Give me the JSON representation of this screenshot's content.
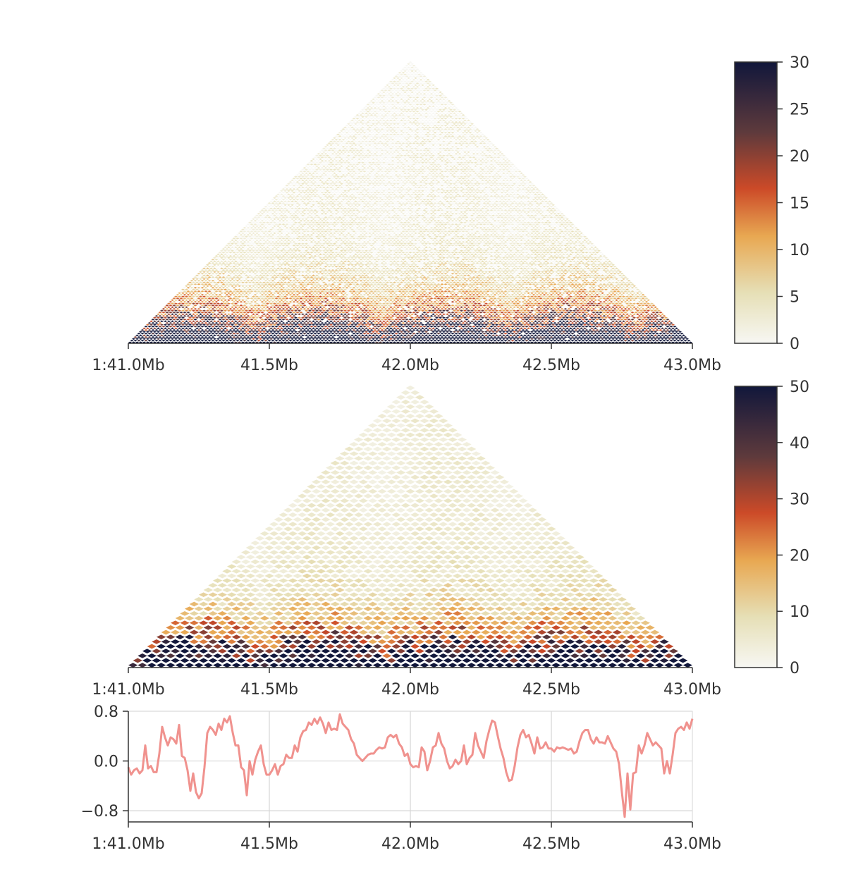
{
  "chart_data": [
    {
      "type": "heatmap",
      "title": "",
      "xlabel": "",
      "ylabel": "",
      "x_ticks": [
        "1:41.0Mb",
        "41.5Mb",
        "42.0Mb",
        "42.5Mb",
        "43.0Mb"
      ],
      "x_tick_values_mb": [
        41.0,
        41.5,
        42.0,
        42.5,
        43.0
      ],
      "region": {
        "chrom": "1",
        "start_mb": 41.0,
        "end_mb": 43.0
      },
      "resolution_bins": 200,
      "colorbar": {
        "min": 0,
        "max": 30,
        "ticks": [
          "0",
          "5",
          "10",
          "15",
          "20",
          "25",
          "30"
        ],
        "tick_values": [
          0,
          5,
          10,
          15,
          20,
          25,
          30
        ]
      },
      "colormap": [
        "#f7f7f3",
        "#e6dfb6",
        "#e8a852",
        "#cc4a28",
        "#5e3a3c",
        "#11173b"
      ],
      "grid": false
    },
    {
      "type": "heatmap",
      "title": "",
      "xlabel": "",
      "ylabel": "",
      "x_ticks": [
        "1:41.0Mb",
        "41.5Mb",
        "42.0Mb",
        "42.5Mb",
        "43.0Mb"
      ],
      "x_tick_values_mb": [
        41.0,
        41.5,
        42.0,
        42.5,
        43.0
      ],
      "region": {
        "chrom": "1",
        "start_mb": 41.0,
        "end_mb": 43.0
      },
      "resolution_bins": 50,
      "colorbar": {
        "min": 0,
        "max": 50,
        "ticks": [
          "0",
          "10",
          "20",
          "30",
          "40",
          "50"
        ],
        "tick_values": [
          0,
          10,
          20,
          30,
          40,
          50
        ]
      },
      "colormap": [
        "#f7f7f3",
        "#e6dfb6",
        "#e8a852",
        "#cc4a28",
        "#5e3a3c",
        "#11173b"
      ],
      "grid": false
    },
    {
      "type": "line",
      "title": "",
      "xlabel": "",
      "ylabel": "",
      "x_ticks": [
        "1:41.0Mb",
        "41.5Mb",
        "42.0Mb",
        "42.5Mb",
        "43.0Mb"
      ],
      "x_tick_values_mb": [
        41.0,
        41.5,
        42.0,
        42.5,
        43.0
      ],
      "y_ticks": [
        "0.8",
        "0.0",
        "−0.8"
      ],
      "y_tick_values": [
        0.8,
        0.0,
        -0.8
      ],
      "ylim": [
        -0.98,
        0.8
      ],
      "xlim": [
        41.0,
        43.0
      ],
      "grid": true,
      "color": "#f0928e",
      "series": [
        {
          "x": [
            41.0,
            41.01,
            41.02,
            41.03,
            41.04,
            41.05,
            41.06,
            41.07,
            41.08,
            41.09,
            41.1,
            41.11,
            41.12,
            41.13,
            41.14,
            41.15,
            41.16,
            41.17,
            41.18,
            41.19,
            41.2,
            41.21,
            41.22,
            41.23,
            41.24,
            41.25,
            41.26,
            41.27,
            41.28,
            41.29,
            41.3,
            41.31,
            41.32,
            41.33,
            41.34,
            41.35,
            41.36,
            41.37,
            41.38,
            41.39,
            41.4,
            41.41,
            41.42,
            41.43,
            41.44,
            41.45,
            41.46,
            41.47,
            41.48,
            41.49,
            41.5,
            41.51,
            41.52,
            41.53,
            41.54,
            41.55,
            41.56,
            41.57,
            41.58,
            41.59,
            41.6,
            41.61,
            41.62,
            41.63,
            41.64,
            41.65,
            41.66,
            41.67,
            41.68,
            41.69,
            41.7,
            41.71,
            41.72,
            41.73,
            41.74,
            41.75,
            41.76,
            41.77,
            41.78,
            41.79,
            41.8,
            41.81,
            41.82,
            41.83,
            41.84,
            41.85,
            41.86,
            41.87,
            41.88,
            41.89,
            41.9,
            41.91,
            41.92,
            41.93,
            41.94,
            41.95,
            41.96,
            41.97,
            41.98,
            41.99,
            42.0,
            42.01,
            42.02,
            42.03,
            42.04,
            42.05,
            42.06,
            42.07,
            42.08,
            42.09,
            42.1,
            42.11,
            42.12,
            42.13,
            42.14,
            42.15,
            42.16,
            42.17,
            42.18,
            42.19,
            42.2,
            42.21,
            42.22,
            42.23,
            42.24,
            42.25,
            42.26,
            42.27,
            42.28,
            42.29,
            42.3,
            42.31,
            42.32,
            42.33,
            42.34,
            42.35,
            42.36,
            42.37,
            42.38,
            42.39,
            42.4,
            42.41,
            42.42,
            42.43,
            42.44,
            42.45,
            42.46,
            42.47,
            42.48,
            42.49,
            42.5,
            42.51,
            42.52,
            42.53,
            42.54,
            42.55,
            42.56,
            42.57,
            42.58,
            42.59,
            42.6,
            42.61,
            42.62,
            42.63,
            42.64,
            42.65,
            42.66,
            42.67,
            42.68,
            42.69,
            42.7,
            42.71,
            42.72,
            42.73,
            42.74,
            42.75,
            42.76,
            42.77,
            42.78,
            42.79,
            42.8,
            42.81,
            42.82,
            42.83,
            42.84,
            42.85,
            42.86,
            42.87,
            42.88,
            42.89,
            42.9,
            42.91,
            42.92,
            42.93,
            42.94,
            42.95,
            42.96,
            42.97,
            42.98,
            42.99,
            43.0
          ],
          "values": [
            -0.1,
            -0.22,
            -0.15,
            -0.12,
            -0.2,
            -0.15,
            0.25,
            -0.12,
            -0.08,
            -0.18,
            -0.18,
            0.12,
            0.55,
            0.38,
            0.25,
            0.38,
            0.35,
            0.28,
            0.58,
            0.08,
            0.05,
            -0.15,
            -0.48,
            -0.2,
            -0.5,
            -0.6,
            -0.52,
            -0.1,
            0.45,
            0.55,
            0.5,
            0.42,
            0.6,
            0.5,
            0.68,
            0.62,
            0.72,
            0.46,
            0.25,
            0.25,
            -0.1,
            -0.15,
            -0.55,
            0.0,
            -0.22,
            0.02,
            0.15,
            0.25,
            -0.05,
            -0.22,
            -0.22,
            -0.15,
            -0.05,
            -0.22,
            -0.08,
            -0.05,
            0.1,
            0.05,
            0.05,
            0.25,
            0.15,
            0.38,
            0.48,
            0.5,
            0.62,
            0.58,
            0.68,
            0.6,
            0.7,
            0.6,
            0.45,
            0.62,
            0.5,
            0.52,
            0.5,
            0.75,
            0.6,
            0.55,
            0.5,
            0.35,
            0.28,
            0.1,
            0.05,
            0.0,
            0.05,
            0.1,
            0.12,
            0.12,
            0.18,
            0.22,
            0.2,
            0.22,
            0.38,
            0.42,
            0.38,
            0.42,
            0.28,
            0.22,
            0.08,
            0.12,
            -0.05,
            -0.1,
            -0.08,
            -0.1,
            0.22,
            0.15,
            -0.15,
            0.0,
            0.22,
            0.25,
            0.45,
            0.28,
            0.2,
            0.0,
            -0.12,
            -0.08,
            0.02,
            -0.05,
            0.0,
            0.25,
            -0.05,
            0.05,
            0.1,
            0.45,
            0.25,
            0.15,
            0.05,
            0.32,
            0.5,
            0.65,
            0.62,
            0.4,
            0.2,
            0.05,
            -0.18,
            -0.32,
            -0.3,
            -0.08,
            0.22,
            0.42,
            0.5,
            0.38,
            0.42,
            0.28,
            0.12,
            0.38,
            0.2,
            0.22,
            0.3,
            0.2,
            0.2,
            0.15,
            0.22,
            0.2,
            0.22,
            0.2,
            0.18,
            0.2,
            0.12,
            0.15,
            0.32,
            0.45,
            0.5,
            0.5,
            0.35,
            0.28,
            0.38,
            0.3,
            0.3,
            0.28,
            0.4,
            0.3,
            0.2,
            0.15,
            -0.05,
            -0.5,
            -0.9,
            -0.2,
            -0.78,
            -0.2,
            -0.18,
            0.25,
            0.12,
            0.25,
            0.45,
            0.35,
            0.25,
            0.3,
            0.25,
            0.2,
            -0.2,
            0.0,
            -0.2,
            0.1,
            0.45,
            0.52,
            0.55,
            0.5,
            0.62,
            0.52,
            0.68
          ]
        }
      ]
    }
  ]
}
